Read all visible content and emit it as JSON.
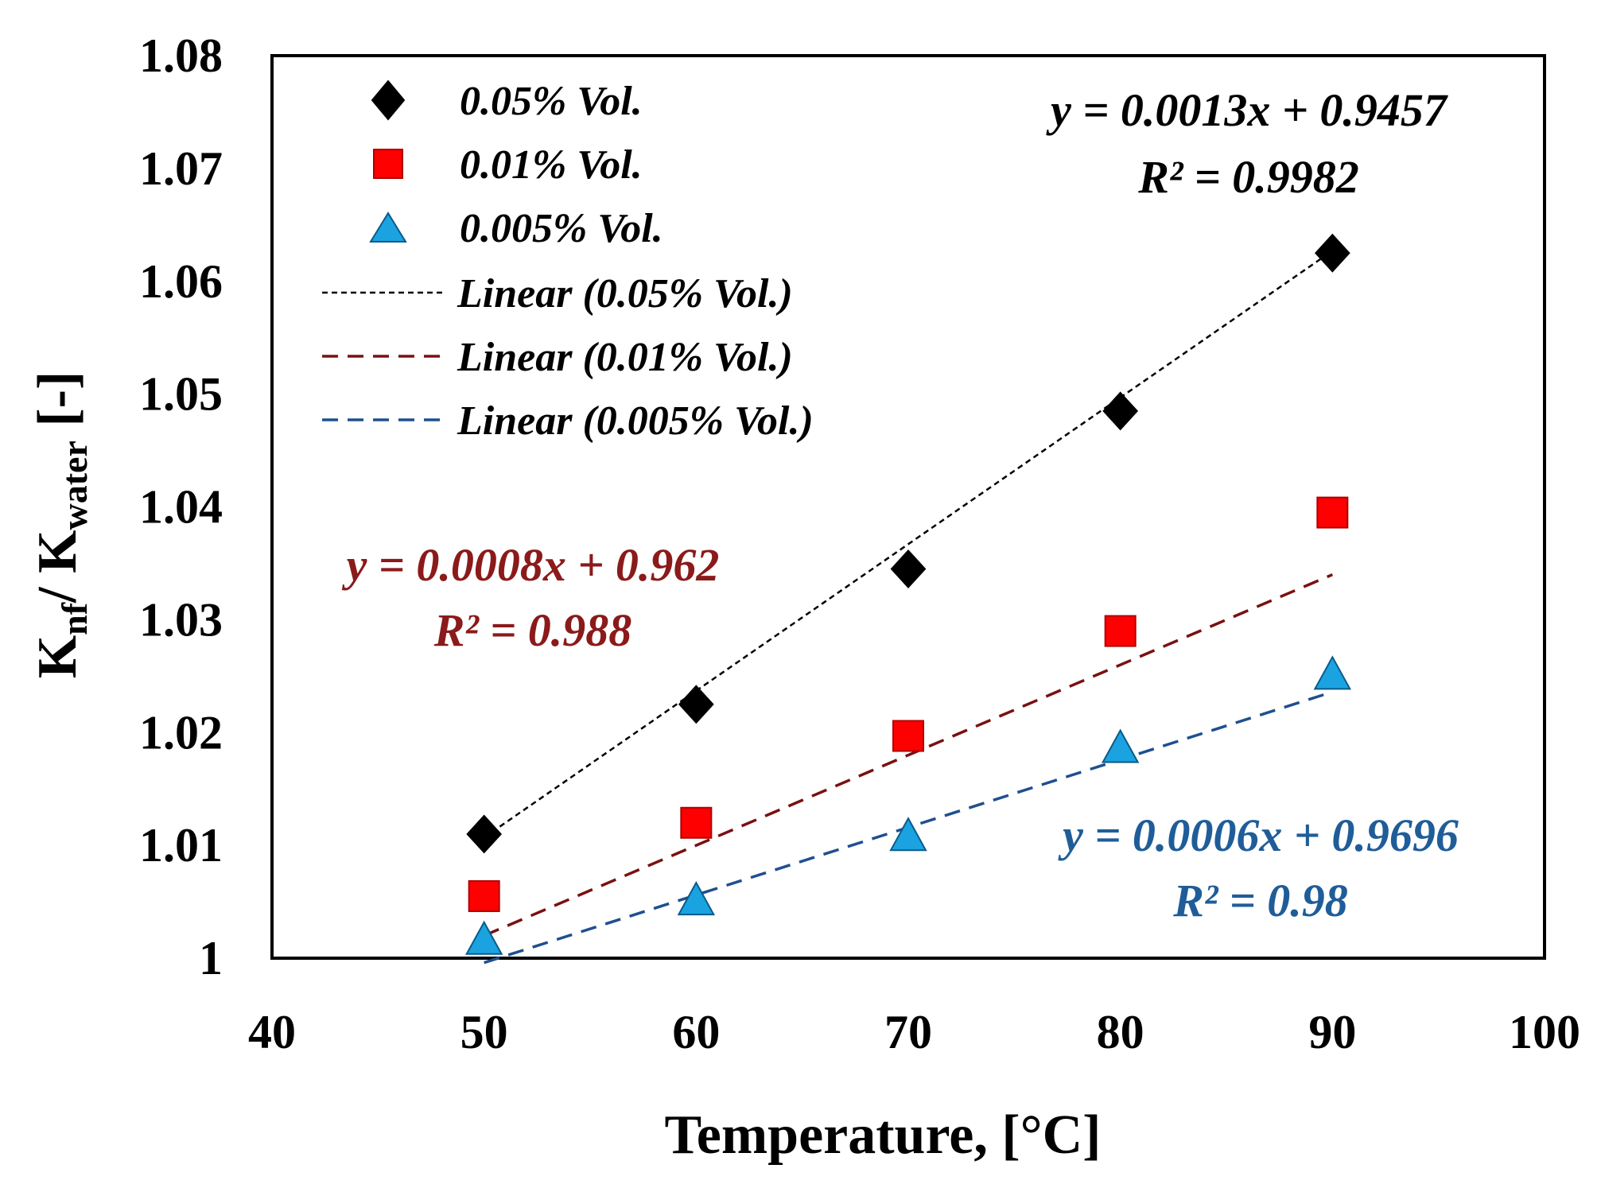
{
  "chart_data": {
    "type": "scatter",
    "xlabel": "Temperature,  [°C]",
    "ylabel": {
      "main1": "K",
      "sub1": "nf",
      "slash": "/ ",
      "main2": "K",
      "sub2": "water",
      "suffix": " [-]"
    },
    "xlim": [
      40,
      100
    ],
    "ylim": [
      1.0,
      1.08
    ],
    "xticks": [
      40,
      50,
      60,
      70,
      80,
      90,
      100
    ],
    "yticks": [
      1.0,
      1.01,
      1.02,
      1.03,
      1.04,
      1.05,
      1.06,
      1.07,
      1.08
    ],
    "ytick_labels": [
      "1",
      "1.01",
      "1.02",
      "1.03",
      "1.04",
      "1.05",
      "1.06",
      "1.07",
      "1.08"
    ],
    "series": [
      {
        "name": "0.05% Vol.",
        "marker": "diamond",
        "color": "#000000",
        "x": [
          50,
          60,
          70,
          80,
          90
        ],
        "y": [
          1.011,
          1.0225,
          1.0345,
          1.0485,
          1.0625
        ],
        "trendline": {
          "name": "Linear (0.05% Vol.)",
          "slope": 0.0013,
          "intercept": 0.9457,
          "color": "#000000",
          "equation": "y = 0.0013x + 0.9457",
          "r2": "R² = 0.9982"
        }
      },
      {
        "name": "0.01% Vol.",
        "marker": "square",
        "color": "#ff0000",
        "x": [
          50,
          60,
          70,
          80,
          90
        ],
        "y": [
          1.0055,
          1.012,
          1.0197,
          1.029,
          1.0395
        ],
        "trendline": {
          "name": "Linear (0.01% Vol.)",
          "slope": 0.0008,
          "intercept": 0.962,
          "color": "#7a1010",
          "equation": "y = 0.0008x + 0.962",
          "r2": "R² = 0.988"
        }
      },
      {
        "name": "0.005% Vol.",
        "marker": "triangle",
        "color": "#1aa3e0",
        "x": [
          50,
          60,
          70,
          80,
          90
        ],
        "y": [
          1.0015,
          1.005,
          1.0107,
          1.0185,
          1.025
        ],
        "trendline": {
          "name": "Linear (0.005% Vol.)",
          "slope": 0.0006,
          "intercept": 0.9696,
          "color": "#1f4f8f",
          "equation": "y = 0.0006x + 0.9696",
          "r2": "R² = 0.98"
        }
      }
    ],
    "equation_colors": [
      "#000000",
      "#8b1a1a",
      "#1f5d99"
    ],
    "legend_position": "top-left",
    "grid": false
  }
}
